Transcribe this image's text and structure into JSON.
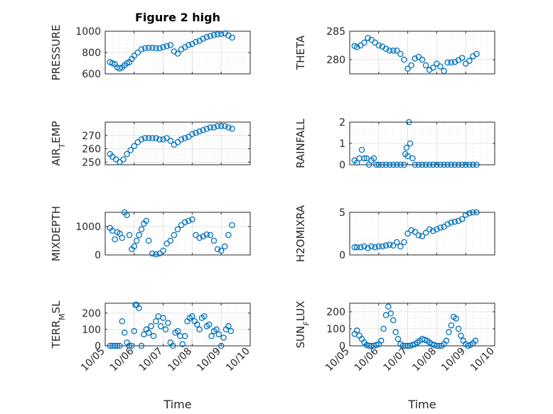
{
  "figure": {
    "title": "Figure 2 high"
  },
  "chart_data": [
    {
      "type": "scatter",
      "ylabel": "PRESSURE",
      "xlabel": "",
      "xlim": [
        "10/05",
        "10/10"
      ],
      "ylim": [
        600,
        1000
      ],
      "yticks": [
        600,
        800,
        1000
      ],
      "grid": true,
      "marker": "circle-open",
      "color": "#0072BD",
      "x": [
        "10/05 04:00",
        "10/05 06:00",
        "10/05 08:00",
        "10/05 10:00",
        "10/05 12:00",
        "10/05 14:00",
        "10/05 16:00",
        "10/05 18:00",
        "10/05 20:00",
        "10/05 22:00",
        "10/06 00:00",
        "10/06 03:00",
        "10/06 06:00",
        "10/06 09:00",
        "10/06 12:00",
        "10/06 15:00",
        "10/06 18:00",
        "10/06 21:00",
        "10/07 00:00",
        "10/07 03:00",
        "10/07 06:00",
        "10/07 09:00",
        "10/07 12:00",
        "10/07 15:00",
        "10/07 18:00",
        "10/07 21:00",
        "10/08 00:00",
        "10/08 03:00",
        "10/08 06:00",
        "10/08 09:00",
        "10/08 12:00",
        "10/08 15:00",
        "10/08 18:00",
        "10/08 21:00",
        "10/09 00:00",
        "10/09 03:00",
        "10/09 06:00",
        "10/09 09:00"
      ],
      "y": [
        710,
        700,
        690,
        660,
        650,
        660,
        680,
        700,
        710,
        740,
        770,
        800,
        830,
        840,
        845,
        845,
        840,
        840,
        850,
        860,
        870,
        810,
        790,
        830,
        850,
        870,
        880,
        900,
        910,
        930,
        945,
        955,
        965,
        970,
        975,
        980,
        960,
        940
      ]
    },
    {
      "type": "scatter",
      "ylabel": "THETA",
      "xlabel": "",
      "xlim": [
        "10/05",
        "10/10"
      ],
      "ylim": [
        277.5,
        285
      ],
      "yticks": [
        280,
        285
      ],
      "grid": true,
      "marker": "circle-open",
      "color": "#0072BD",
      "x": [
        "10/05 04:00",
        "10/05 06:00",
        "10/05 09:00",
        "10/05 12:00",
        "10/05 15:00",
        "10/05 18:00",
        "10/05 21:00",
        "10/06 00:00",
        "10/06 03:00",
        "10/06 06:00",
        "10/06 09:00",
        "10/06 12:00",
        "10/06 15:00",
        "10/06 18:00",
        "10/06 21:00",
        "10/07 00:00",
        "10/07 03:00",
        "10/07 06:00",
        "10/07 09:00",
        "10/07 12:00",
        "10/07 15:00",
        "10/07 18:00",
        "10/07 21:00",
        "10/08 00:00",
        "10/08 03:00",
        "10/08 06:00",
        "10/08 09:00",
        "10/08 12:00",
        "10/08 15:00",
        "10/08 18:00",
        "10/08 21:00",
        "10/09 00:00",
        "10/09 03:00",
        "10/09 06:00",
        "10/09 09:00"
      ],
      "y": [
        282.4,
        282.2,
        282.5,
        283.0,
        283.8,
        283.5,
        283.0,
        282.5,
        282.3,
        281.9,
        281.6,
        281.6,
        281.6,
        281.0,
        280.0,
        278.4,
        279.0,
        280.2,
        280.5,
        280.0,
        279.0,
        278.2,
        278.6,
        279.3,
        278.8,
        278.0,
        279.5,
        279.5,
        279.6,
        279.9,
        280.3,
        279.3,
        279.8,
        280.6,
        281.0
      ]
    },
    {
      "type": "scatter",
      "ylabel": "AIR_TEMP",
      "xlabel": "",
      "xlim": [
        "10/05",
        "10/10"
      ],
      "ylim": [
        248,
        280
      ],
      "yticks": [
        250,
        260,
        270
      ],
      "grid": true,
      "marker": "circle-open",
      "color": "#0072BD",
      "x": [
        "10/05 04:00",
        "10/05 06:00",
        "10/05 09:00",
        "10/05 12:00",
        "10/05 15:00",
        "10/05 18:00",
        "10/05 21:00",
        "10/06 00:00",
        "10/06 03:00",
        "10/06 06:00",
        "10/06 09:00",
        "10/06 12:00",
        "10/06 15:00",
        "10/06 18:00",
        "10/06 21:00",
        "10/07 00:00",
        "10/07 03:00",
        "10/07 06:00",
        "10/07 09:00",
        "10/07 12:00",
        "10/07 15:00",
        "10/07 18:00",
        "10/07 21:00",
        "10/08 00:00",
        "10/08 03:00",
        "10/08 06:00",
        "10/08 09:00",
        "10/08 12:00",
        "10/08 15:00",
        "10/08 18:00",
        "10/08 21:00",
        "10/09 00:00",
        "10/09 03:00",
        "10/09 06:00",
        "10/09 09:00"
      ],
      "y": [
        256,
        254,
        252,
        250,
        252,
        256,
        259,
        262,
        265,
        267,
        268,
        268,
        268,
        268,
        267,
        267,
        268,
        266,
        263,
        265,
        267,
        268,
        269,
        271,
        272,
        273,
        274,
        275,
        276,
        276,
        277,
        277,
        277,
        276,
        275
      ]
    },
    {
      "type": "scatter",
      "ylabel": "RAINFALL",
      "xlabel": "",
      "xlim": [
        "10/05",
        "10/10"
      ],
      "ylim": [
        0,
        2
      ],
      "yticks": [
        0,
        1,
        2
      ],
      "grid": true,
      "marker": "circle-open",
      "color": "#0072BD",
      "x": [
        "10/05 04:00",
        "10/05 06:00",
        "10/05 08:00",
        "10/05 10:00",
        "10/05 12:00",
        "10/05 14:00",
        "10/05 16:00",
        "10/05 18:00",
        "10/05 20:00",
        "10/05 22:00",
        "10/06 00:00",
        "10/06 03:00",
        "10/06 06:00",
        "10/06 09:00",
        "10/06 12:00",
        "10/06 15:00",
        "10/06 18:00",
        "10/06 21:00",
        "10/06 22:00",
        "10/06 23:00",
        "10/07 00:00",
        "10/07 01:00",
        "10/07 02:00",
        "10/07 04:00",
        "10/07 06:00",
        "10/07 09:00",
        "10/07 12:00",
        "10/07 15:00",
        "10/07 18:00",
        "10/07 21:00",
        "10/08 00:00",
        "10/08 03:00",
        "10/08 06:00",
        "10/08 09:00",
        "10/08 12:00",
        "10/08 15:00",
        "10/08 18:00",
        "10/08 21:00",
        "10/09 00:00",
        "10/09 03:00",
        "10/09 06:00",
        "10/09 09:00"
      ],
      "y": [
        0.2,
        0.1,
        0.3,
        0.7,
        0.3,
        0.3,
        0.0,
        0.2,
        0.3,
        0.0,
        0.0,
        0.0,
        0.0,
        0.0,
        0.0,
        0.0,
        0.0,
        0.0,
        0.5,
        0.8,
        0.4,
        2.0,
        1.0,
        0.3,
        0.0,
        0.0,
        0.0,
        0.0,
        0.0,
        0.0,
        0.0,
        0.0,
        0.0,
        0.0,
        0.0,
        0.0,
        0.0,
        0.0,
        0.0,
        0.0,
        0.0,
        0.0
      ]
    },
    {
      "type": "scatter",
      "ylabel": "MIXDEPTH",
      "xlabel": "",
      "xlim": [
        "10/05",
        "10/10"
      ],
      "ylim": [
        0,
        1500
      ],
      "yticks": [
        0,
        1000
      ],
      "grid": true,
      "marker": "circle-open",
      "color": "#0072BD",
      "x": [
        "10/05 04:00",
        "10/05 06:00",
        "10/05 08:00",
        "10/05 10:00",
        "10/05 12:00",
        "10/05 14:00",
        "10/05 16:00",
        "10/05 18:00",
        "10/05 20:00",
        "10/05 22:00",
        "10/06 00:00",
        "10/06 02:00",
        "10/06 04:00",
        "10/06 06:00",
        "10/06 08:00",
        "10/06 10:00",
        "10/06 12:00",
        "10/06 15:00",
        "10/06 18:00",
        "10/06 21:00",
        "10/07 00:00",
        "10/07 03:00",
        "10/07 06:00",
        "10/07 09:00",
        "10/07 12:00",
        "10/07 15:00",
        "10/07 18:00",
        "10/07 21:00",
        "10/08 00:00",
        "10/08 03:00",
        "10/08 06:00",
        "10/08 09:00",
        "10/08 12:00",
        "10/08 15:00",
        "10/08 18:00",
        "10/08 21:00",
        "10/09 00:00",
        "10/09 03:00",
        "10/09 06:00",
        "10/09 09:00"
      ],
      "y": [
        950,
        850,
        550,
        800,
        750,
        600,
        1500,
        1400,
        700,
        200,
        300,
        500,
        700,
        900,
        1100,
        1200,
        500,
        50,
        20,
        50,
        150,
        400,
        500,
        700,
        900,
        1050,
        1150,
        1200,
        1250,
        700,
        600,
        650,
        720,
        700,
        500,
        200,
        150,
        300,
        700,
        1050
      ]
    },
    {
      "type": "scatter",
      "ylabel": "H2OMIXRA",
      "xlabel": "",
      "xlim": [
        "10/05",
        "10/10"
      ],
      "ylim": [
        0,
        5
      ],
      "yticks": [
        0,
        5
      ],
      "grid": true,
      "marker": "circle-open",
      "color": "#0072BD",
      "x": [
        "10/05 04:00",
        "10/05 06:00",
        "10/05 09:00",
        "10/05 12:00",
        "10/05 15:00",
        "10/05 18:00",
        "10/05 21:00",
        "10/06 00:00",
        "10/06 03:00",
        "10/06 06:00",
        "10/06 09:00",
        "10/06 12:00",
        "10/06 15:00",
        "10/06 18:00",
        "10/06 21:00",
        "10/07 00:00",
        "10/07 03:00",
        "10/07 06:00",
        "10/07 09:00",
        "10/07 12:00",
        "10/07 15:00",
        "10/07 18:00",
        "10/07 21:00",
        "10/08 00:00",
        "10/08 03:00",
        "10/08 06:00",
        "10/08 09:00",
        "10/08 12:00",
        "10/08 15:00",
        "10/08 18:00",
        "10/08 21:00",
        "10/09 00:00",
        "10/09 03:00",
        "10/09 06:00",
        "10/09 09:00"
      ],
      "y": [
        0.9,
        0.9,
        0.9,
        1.0,
        0.8,
        1.0,
        0.9,
        1.0,
        1.0,
        1.1,
        1.2,
        1.1,
        1.5,
        1.0,
        1.5,
        2.5,
        2.9,
        2.7,
        2.3,
        2.2,
        2.6,
        3.0,
        2.8,
        3.0,
        3.2,
        3.3,
        3.6,
        3.8,
        3.9,
        4.0,
        4.2,
        4.7,
        4.9,
        5.0,
        5.0
      ]
    },
    {
      "type": "scatter",
      "ylabel": "TERR_MSL",
      "xlabel": "Time",
      "xlim": [
        "10/05",
        "10/10"
      ],
      "ylim": [
        0,
        260
      ],
      "yticks": [
        0,
        100,
        200
      ],
      "xticks": [
        "10/05",
        "10/06",
        "10/07",
        "10/08",
        "10/09",
        "10/10"
      ],
      "grid": true,
      "marker": "circle-open",
      "color": "#0072BD",
      "x": [
        "10/05 04:00",
        "10/05 06:00",
        "10/05 08:00",
        "10/05 10:00",
        "10/05 12:00",
        "10/05 14:00",
        "10/05 16:00",
        "10/05 18:00",
        "10/05 20:00",
        "10/05 22:00",
        "10/06 00:00",
        "10/06 01:00",
        "10/06 02:00",
        "10/06 04:00",
        "10/06 06:00",
        "10/06 08:00",
        "10/06 10:00",
        "10/06 12:00",
        "10/06 14:00",
        "10/06 16:00",
        "10/06 18:00",
        "10/06 20:00",
        "10/06 22:00",
        "10/07 00:00",
        "10/07 02:00",
        "10/07 04:00",
        "10/07 06:00",
        "10/07 08:00",
        "10/07 10:00",
        "10/07 12:00",
        "10/07 14:00",
        "10/07 16:00",
        "10/07 18:00",
        "10/07 20:00",
        "10/07 22:00",
        "10/08 00:00",
        "10/08 02:00",
        "10/08 04:00",
        "10/08 06:00",
        "10/08 08:00",
        "10/08 10:00",
        "10/08 12:00",
        "10/08 14:00",
        "10/08 16:00",
        "10/08 18:00",
        "10/08 20:00",
        "10/08 22:00",
        "10/09 00:00",
        "10/09 02:00",
        "10/09 04:00",
        "10/09 06:00",
        "10/09 08:00"
      ],
      "y": [
        0,
        0,
        0,
        0,
        0,
        150,
        80,
        20,
        0,
        0,
        90,
        250,
        250,
        230,
        0,
        70,
        100,
        80,
        120,
        60,
        150,
        180,
        120,
        170,
        100,
        140,
        20,
        0,
        80,
        90,
        60,
        10,
        60,
        150,
        170,
        180,
        150,
        130,
        100,
        170,
        180,
        120,
        130,
        60,
        90,
        100,
        70,
        0,
        50,
        100,
        120,
        90
      ]
    },
    {
      "type": "scatter",
      "ylabel": "SUN_FLUX",
      "xlabel": "Time",
      "xlim": [
        "10/05",
        "10/10"
      ],
      "ylim": [
        0,
        250
      ],
      "yticks": [
        0,
        100,
        200
      ],
      "xticks": [
        "10/05",
        "10/06",
        "10/07",
        "10/08",
        "10/09",
        "10/10"
      ],
      "grid": true,
      "marker": "circle-open",
      "color": "#0072BD",
      "x": [
        "10/05 04:00",
        "10/05 06:00",
        "10/05 08:00",
        "10/05 10:00",
        "10/05 12:00",
        "10/05 14:00",
        "10/05 16:00",
        "10/05 18:00",
        "10/05 20:00",
        "10/05 22:00",
        "10/06 00:00",
        "10/06 02:00",
        "10/06 04:00",
        "10/06 06:00",
        "10/06 08:00",
        "10/06 10:00",
        "10/06 12:00",
        "10/06 14:00",
        "10/06 16:00",
        "10/06 18:00",
        "10/06 20:00",
        "10/06 22:00",
        "10/07 00:00",
        "10/07 02:00",
        "10/07 04:00",
        "10/07 06:00",
        "10/07 08:00",
        "10/07 10:00",
        "10/07 12:00",
        "10/07 14:00",
        "10/07 16:00",
        "10/07 18:00",
        "10/07 20:00",
        "10/07 22:00",
        "10/08 00:00",
        "10/08 02:00",
        "10/08 04:00",
        "10/08 06:00",
        "10/08 08:00",
        "10/08 10:00",
        "10/08 12:00",
        "10/08 14:00",
        "10/08 16:00",
        "10/08 18:00",
        "10/08 20:00",
        "10/08 22:00",
        "10/09 00:00",
        "10/09 02:00",
        "10/09 04:00",
        "10/09 06:00",
        "10/09 08:00"
      ],
      "y": [
        70,
        90,
        60,
        40,
        20,
        5,
        0,
        0,
        0,
        5,
        10,
        30,
        100,
        180,
        230,
        190,
        150,
        80,
        40,
        10,
        0,
        0,
        0,
        0,
        5,
        10,
        20,
        30,
        40,
        35,
        30,
        20,
        10,
        5,
        0,
        0,
        0,
        10,
        30,
        80,
        120,
        170,
        160,
        100,
        60,
        30,
        10,
        0,
        5,
        15,
        30
      ]
    }
  ]
}
